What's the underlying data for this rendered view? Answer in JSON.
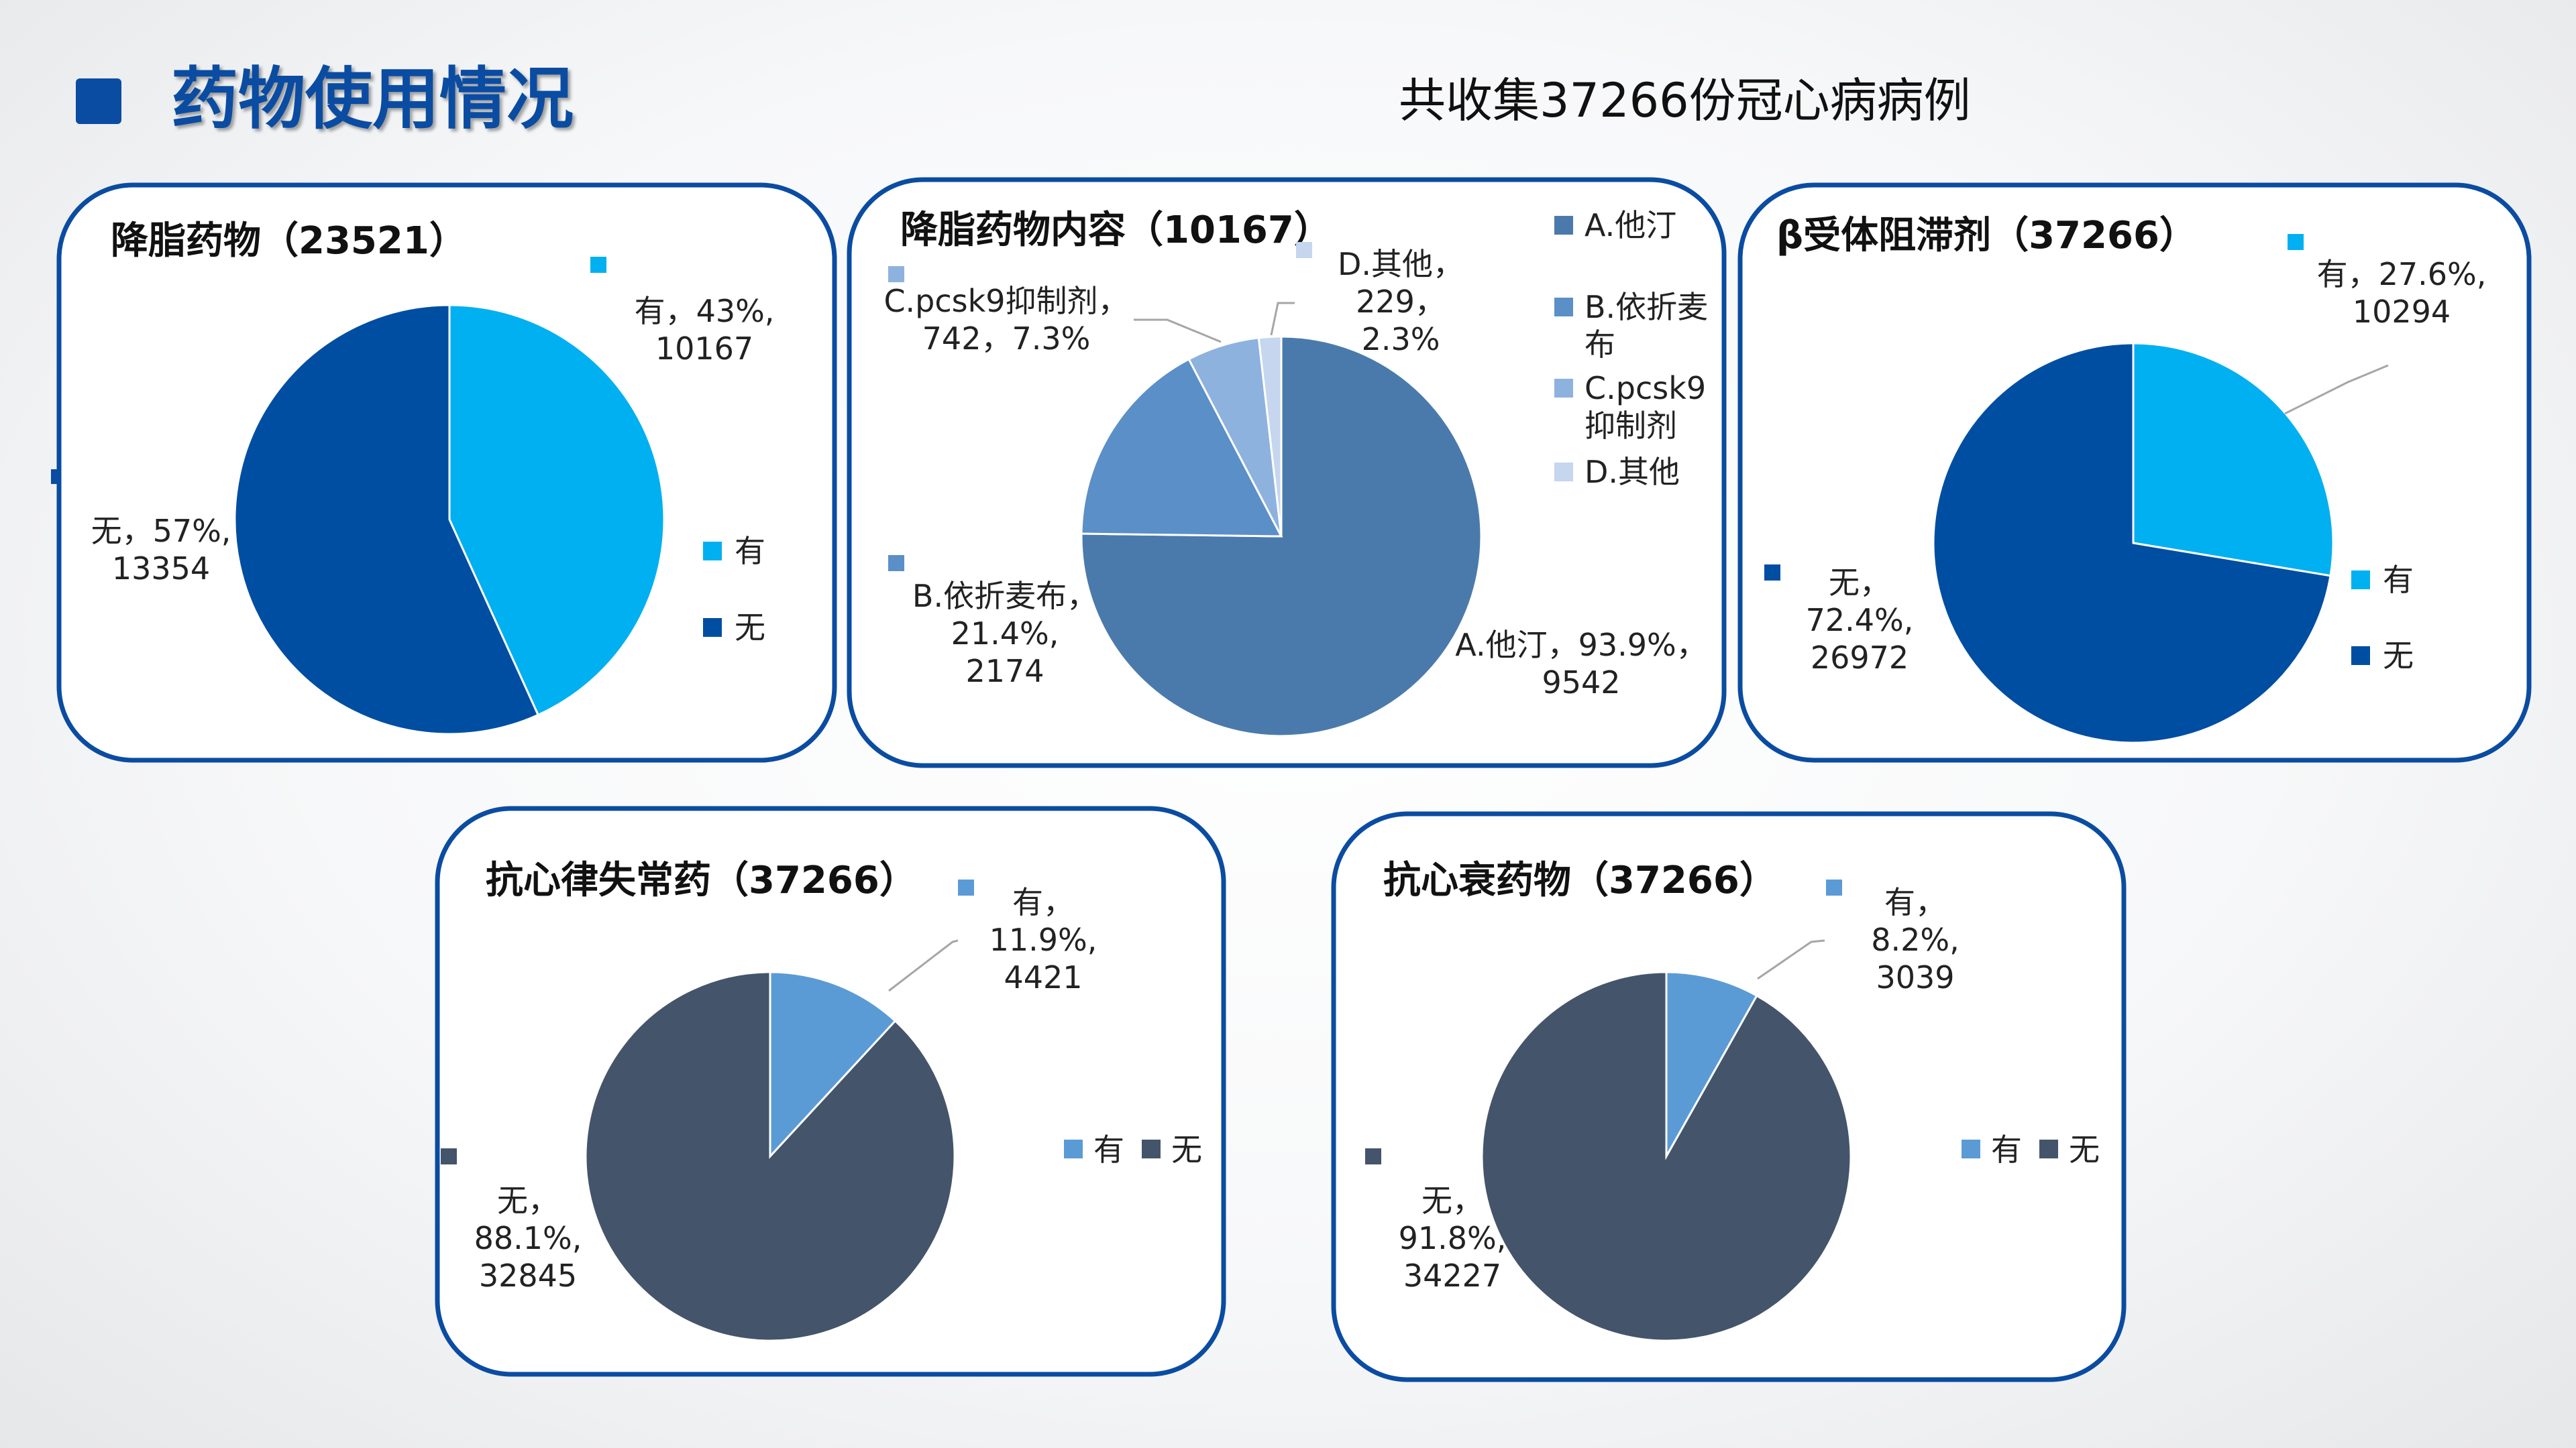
{
  "page": {
    "title": "药物使用情况",
    "subtitle": "共收集37266份冠心病病例"
  },
  "colors": {
    "brand": "#0a4ca2",
    "you": "#00b0f0",
    "wu": "#004ea2",
    "wu_dark": "#44546a",
    "statin": "#4a7aab",
    "ezetimibe": "#5b8fc7",
    "pcsk9": "#8db2de",
    "other": "#c5d6ee",
    "you_light": "#5b9bd5"
  },
  "chart_data": [
    {
      "type": "pie",
      "title": "降脂药物（23521）",
      "slices": [
        {
          "name": "有",
          "value": 10167,
          "percent": "43%",
          "label_lines": [
            "有，43%,",
            "10167"
          ]
        },
        {
          "name": "无",
          "value": 13354,
          "percent": "57%",
          "label_lines": [
            "无，57%,",
            "13354"
          ]
        }
      ],
      "legend": [
        "有",
        "无"
      ]
    },
    {
      "type": "pie",
      "title": "降脂药物内容（10167）",
      "slices": [
        {
          "name": "A.他汀",
          "value": 9542,
          "percent": "93.9%",
          "label_lines": [
            "A.他汀，93.9%，",
            "9542"
          ]
        },
        {
          "name": "B.依折麦布",
          "value": 2174,
          "percent": "21.4%",
          "label_lines": [
            "B.依折麦布，",
            "21.4%,",
            "2174"
          ]
        },
        {
          "name": "C.pcsk9抑制剂",
          "value": 742,
          "percent": "7.3%",
          "label_lines": [
            "C.pcsk9抑制剂，",
            "742，7.3%"
          ]
        },
        {
          "name": "D.其他",
          "value": 229,
          "percent": "2.3%",
          "label_lines": [
            "D.其他，",
            "229，",
            "2.3%"
          ]
        }
      ],
      "legend": [
        [
          "A.他汀"
        ],
        [
          "B.依折麦",
          "布"
        ],
        [
          "C.pcsk9",
          "抑制剂"
        ],
        [
          "D.其他"
        ]
      ]
    },
    {
      "type": "pie",
      "title": "β受体阻滞剂（37266）",
      "slices": [
        {
          "name": "有",
          "value": 10294,
          "percent": "27.6%",
          "label_lines": [
            "有，27.6%,",
            "10294"
          ]
        },
        {
          "name": "无",
          "value": 26972,
          "percent": "72.4%",
          "label_lines": [
            "无，",
            "72.4%,",
            "26972"
          ]
        }
      ],
      "legend": [
        "有",
        "无"
      ]
    },
    {
      "type": "pie",
      "title": "抗心律失常药（37266）",
      "slices": [
        {
          "name": "有",
          "value": 4421,
          "percent": "11.9%",
          "label_lines": [
            "有，",
            "11.9%,",
            "4421"
          ]
        },
        {
          "name": "无",
          "value": 32845,
          "percent": "88.1%",
          "label_lines": [
            "无，",
            "88.1%,",
            "32845"
          ]
        }
      ],
      "legend": [
        "有",
        "无"
      ]
    },
    {
      "type": "pie",
      "title": "抗心衰药物（37266）",
      "slices": [
        {
          "name": "有",
          "value": 3039,
          "percent": "8.2%",
          "label_lines": [
            "有，",
            "8.2%,",
            "3039"
          ]
        },
        {
          "name": "无",
          "value": 34227,
          "percent": "91.8%",
          "label_lines": [
            "无，",
            "91.8%,",
            "34227"
          ]
        }
      ],
      "legend": [
        "有",
        "无"
      ]
    }
  ]
}
